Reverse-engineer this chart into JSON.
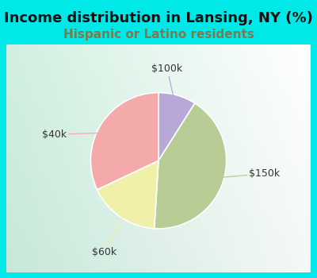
{
  "title": "Income distribution in Lansing, NY (%)",
  "subtitle": "Hispanic or Latino residents",
  "slices": [
    {
      "label": "$100k",
      "value": 9,
      "color": "#b8a8d8"
    },
    {
      "label": "$150k",
      "value": 42,
      "color": "#b8cc96"
    },
    {
      "label": "$60k",
      "value": 17,
      "color": "#f0f0a8"
    },
    {
      "label": "$40k",
      "value": 32,
      "color": "#f4aaaa"
    }
  ],
  "background_color": "#00e8e8",
  "chart_bg_left": "#d8ede0",
  "chart_bg_right": "#f0f8f8",
  "title_color": "#111111",
  "subtitle_color": "#7a7a50",
  "title_fontsize": 13,
  "subtitle_fontsize": 11,
  "label_fontsize": 9,
  "startangle": 90,
  "label_color": "#333333"
}
